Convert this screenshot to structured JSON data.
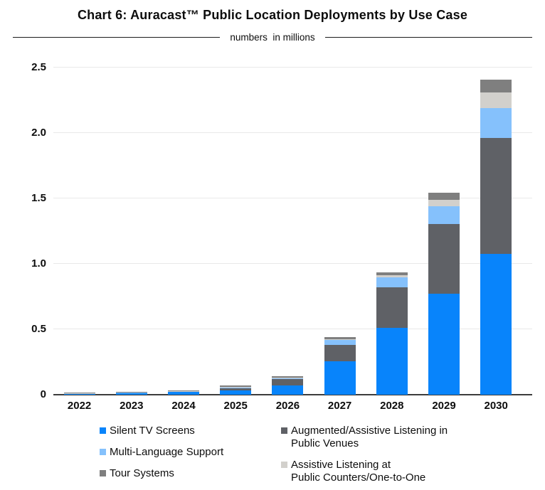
{
  "header": {
    "title": "Chart 6: Auracast™ Public Location Deployments by Use Case",
    "subtitle": "numbers  in millions"
  },
  "chart_data": {
    "type": "bar",
    "stacked": true,
    "title": "Chart 6: Auracast™ Public Location Deployments by Use Case",
    "subtitle": "numbers in millions",
    "unit": "millions",
    "categories": [
      "2022",
      "2023",
      "2024",
      "2025",
      "2026",
      "2027",
      "2028",
      "2029",
      "2030"
    ],
    "series": [
      {
        "name": "Silent TV Screens",
        "color": "#0884fb",
        "values": [
          0.007,
          0.012,
          0.02,
          0.033,
          0.068,
          0.255,
          0.51,
          0.77,
          1.075
        ]
      },
      {
        "name": "Augmented/Assistive Listening in Public Venues",
        "color": "#5f6166",
        "values": [
          0.003,
          0.005,
          0.007,
          0.016,
          0.051,
          0.127,
          0.31,
          0.535,
          0.885
        ]
      },
      {
        "name": "Multi-Language Support",
        "color": "#85c1fc",
        "values": [
          0.001,
          0.002,
          0.002,
          0.009,
          0.01,
          0.036,
          0.074,
          0.136,
          0.226
        ]
      },
      {
        "name": "Assistive Listening at Public Counters/One-to-One",
        "color": "#d2d0cc",
        "values": [
          0.001,
          0.001,
          0.001,
          0.002,
          0.003,
          0.007,
          0.018,
          0.046,
          0.123
        ]
      },
      {
        "name": "Tour Systems",
        "color": "#7f7f7f",
        "values": [
          0.002,
          0.002,
          0.003,
          0.008,
          0.009,
          0.013,
          0.022,
          0.054,
          0.096
        ]
      }
    ],
    "ylim": [
      0,
      2.5
    ],
    "yticks": [
      0,
      0.5,
      1.0,
      1.5,
      2.0,
      2.5
    ],
    "ytick_labels": [
      "0",
      "0.5",
      "1.0",
      "1.5",
      "2.0",
      "2.5"
    ],
    "grid": true,
    "legend_position": "bottom",
    "axis_color": "#3c3c3c",
    "gridline_color": "#e9e9e9"
  },
  "legend": {
    "columns": [
      {
        "items": [
          {
            "label": "Silent TV Screens",
            "color": "#0884fb"
          },
          {
            "label": "Multi-Language Support",
            "color": "#85c1fc"
          },
          {
            "label": "Tour Systems",
            "color": "#7f7f7f"
          }
        ]
      },
      {
        "items": [
          {
            "label": "Augmented/Assistive Listening in\nPublic Venues",
            "color": "#5f6166"
          },
          {
            "label": "Assistive Listening at\nPublic Counters/One-to-One",
            "color": "#d2d0cc"
          }
        ]
      }
    ]
  }
}
